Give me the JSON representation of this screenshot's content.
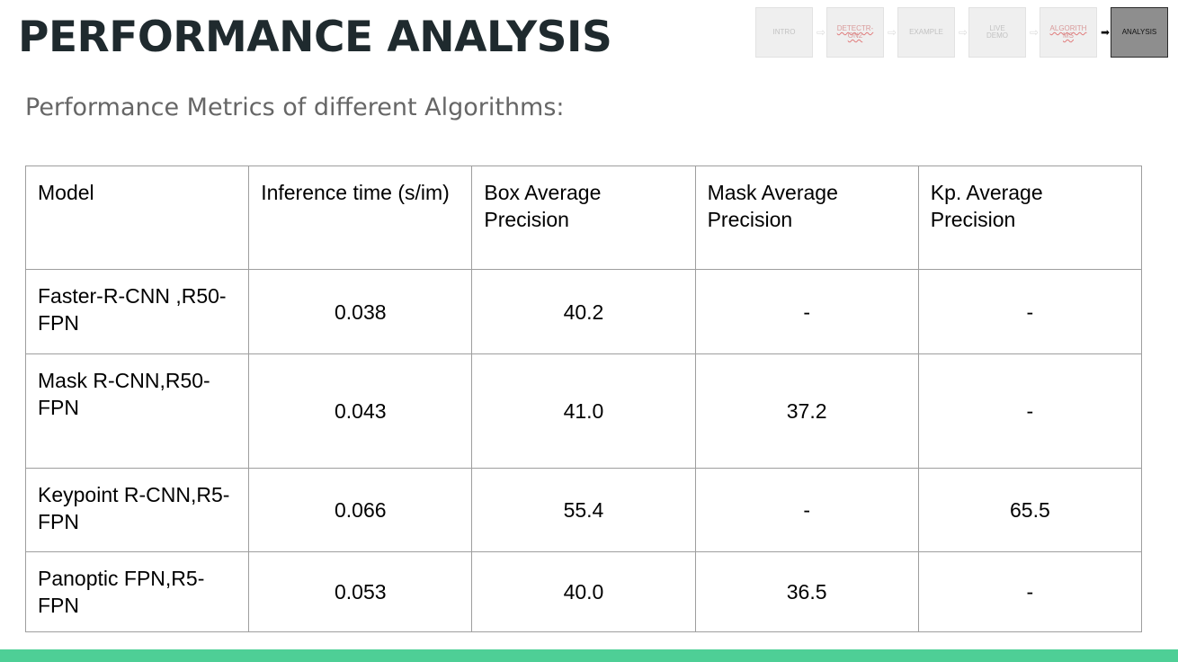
{
  "slide": {
    "title": "PERFORMANCE ANALYSIS",
    "subtitle": "Performance Metrics of different Algorithms:"
  },
  "nav": {
    "steps": [
      {
        "label": "INTRO",
        "state": "inactive"
      },
      {
        "label": "DETECTR-\nON2",
        "state": "inactive"
      },
      {
        "label": "EXAMPLE",
        "state": "inactive"
      },
      {
        "label": "LIVE\nDEMO",
        "state": "inactive"
      },
      {
        "label": "ALGORITH\nMS",
        "state": "inactive"
      },
      {
        "label": "ANALYSIS",
        "state": "active"
      }
    ],
    "arrow_glyph": "⇨",
    "active_arrow_glyph": "➡"
  },
  "table": {
    "headers": [
      "Model",
      "Inference time (s/im)",
      "Box Average Precision",
      "Mask Average Precision",
      "Kp. Average Precision"
    ],
    "rows": [
      {
        "model": "Faster-R-CNN ,R50-FPN",
        "inference": "0.038",
        "box_ap": "40.2",
        "mask_ap": "-",
        "kp_ap": "-"
      },
      {
        "model": "Mask R-CNN,R50-FPN",
        "inference": "0.043",
        "box_ap": "41.0",
        "mask_ap": "37.2",
        "kp_ap": "-"
      },
      {
        "model": "Keypoint R-CNN,R5-FPN",
        "inference": "0.066",
        "box_ap": "55.4",
        "mask_ap": "-",
        "kp_ap": "65.5"
      },
      {
        "model": "Panoptic FPN,R5-FPN",
        "inference": "0.053",
        "box_ap": "40.0",
        "mask_ap": "36.5",
        "kp_ap": "-"
      }
    ]
  },
  "colors": {
    "footer_bar": "#4ecf96",
    "title_text": "#1f2a2e",
    "subtitle_text": "#666666",
    "nav_active": "#8e8e8e"
  }
}
